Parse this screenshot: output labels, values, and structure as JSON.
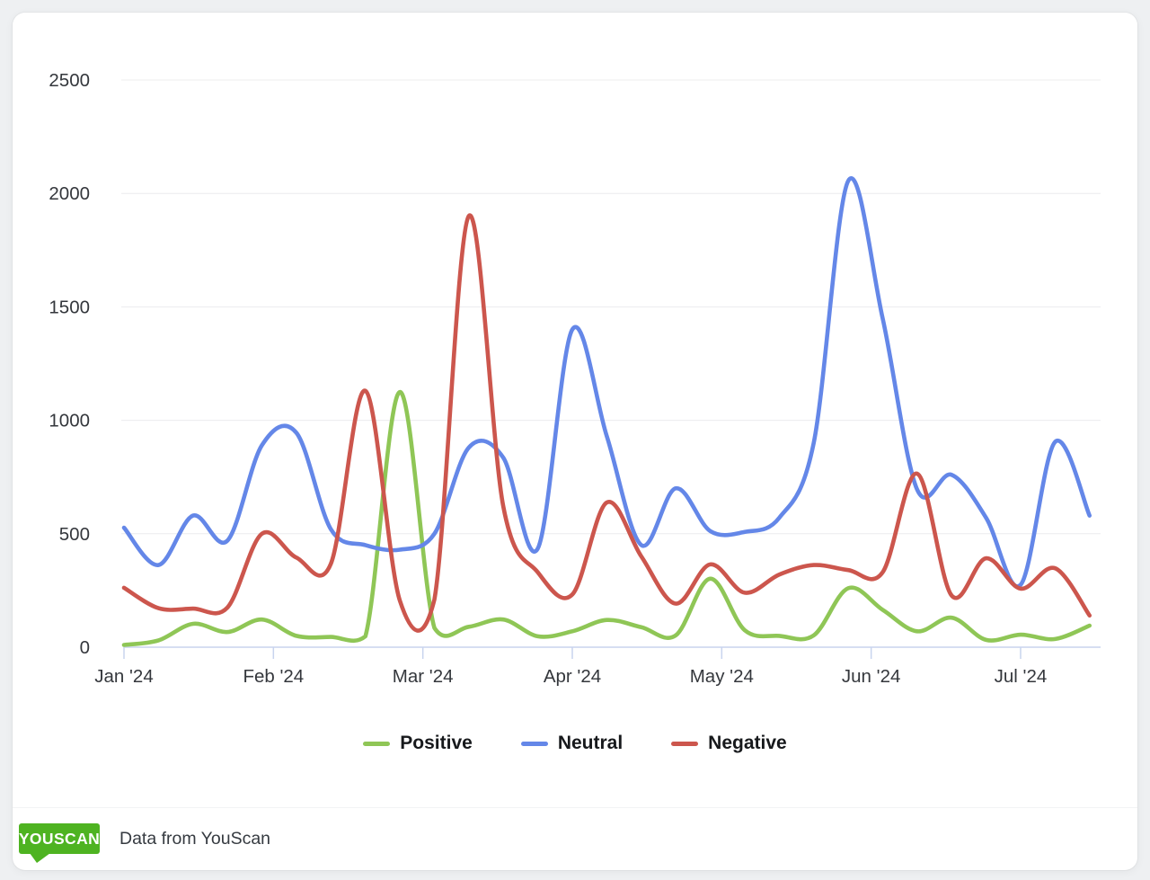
{
  "chart_data": {
    "type": "line",
    "title": "",
    "x_unit": "week",
    "x": [
      "2024-01-01",
      "2024-01-08",
      "2024-01-15",
      "2024-01-22",
      "2024-01-29",
      "2024-02-05",
      "2024-02-12",
      "2024-02-19",
      "2024-02-26",
      "2024-03-04",
      "2024-03-11",
      "2024-03-18",
      "2024-03-25",
      "2024-04-01",
      "2024-04-08",
      "2024-04-15",
      "2024-04-22",
      "2024-04-29",
      "2024-05-06",
      "2024-05-13",
      "2024-05-20",
      "2024-05-27",
      "2024-06-03",
      "2024-06-10",
      "2024-06-17",
      "2024-06-24",
      "2024-07-01",
      "2024-07-08",
      "2024-07-15"
    ],
    "x_tick_labels": [
      "Jan '24",
      "Feb '24",
      "Mar '24",
      "Apr '24",
      "May '24",
      "Jun '24",
      "Jul '24"
    ],
    "y_ticks": [
      0,
      500,
      1000,
      1500,
      2000,
      2500
    ],
    "ylim": [
      0,
      2500
    ],
    "grid": "horizontal",
    "legend_position": "bottom",
    "axis_color": "#c8d4ee",
    "grid_color": "#ececee",
    "label_color": "#34373c",
    "series": [
      {
        "name": "Positive",
        "color": "#8fc656",
        "values": [
          10,
          30,
          103,
          67,
          122,
          50,
          45,
          48,
          1125,
          85,
          90,
          122,
          48,
          70,
          120,
          88,
          52,
          302,
          75,
          50,
          52,
          260,
          165,
          70,
          130,
          32,
          55,
          36,
          95
        ]
      },
      {
        "name": "Neutral",
        "color": "#6487e8",
        "values": [
          527,
          362,
          580,
          470,
          890,
          945,
          520,
          450,
          430,
          500,
          880,
          835,
          435,
          1400,
          930,
          450,
          700,
          512,
          508,
          570,
          900,
          2055,
          1450,
          695,
          760,
          570,
          275,
          905,
          580
        ]
      },
      {
        "name": "Negative",
        "color": "#cc564d",
        "values": [
          262,
          172,
          170,
          175,
          500,
          395,
          368,
          1130,
          205,
          210,
          1900,
          620,
          330,
          232,
          638,
          400,
          192,
          365,
          240,
          320,
          362,
          340,
          330,
          765,
          228,
          392,
          258,
          348,
          140
        ]
      }
    ]
  },
  "footer": {
    "logo_text": "YOUSCAN",
    "logo_color": "#4eb321",
    "attribution": "Data from YouScan"
  }
}
